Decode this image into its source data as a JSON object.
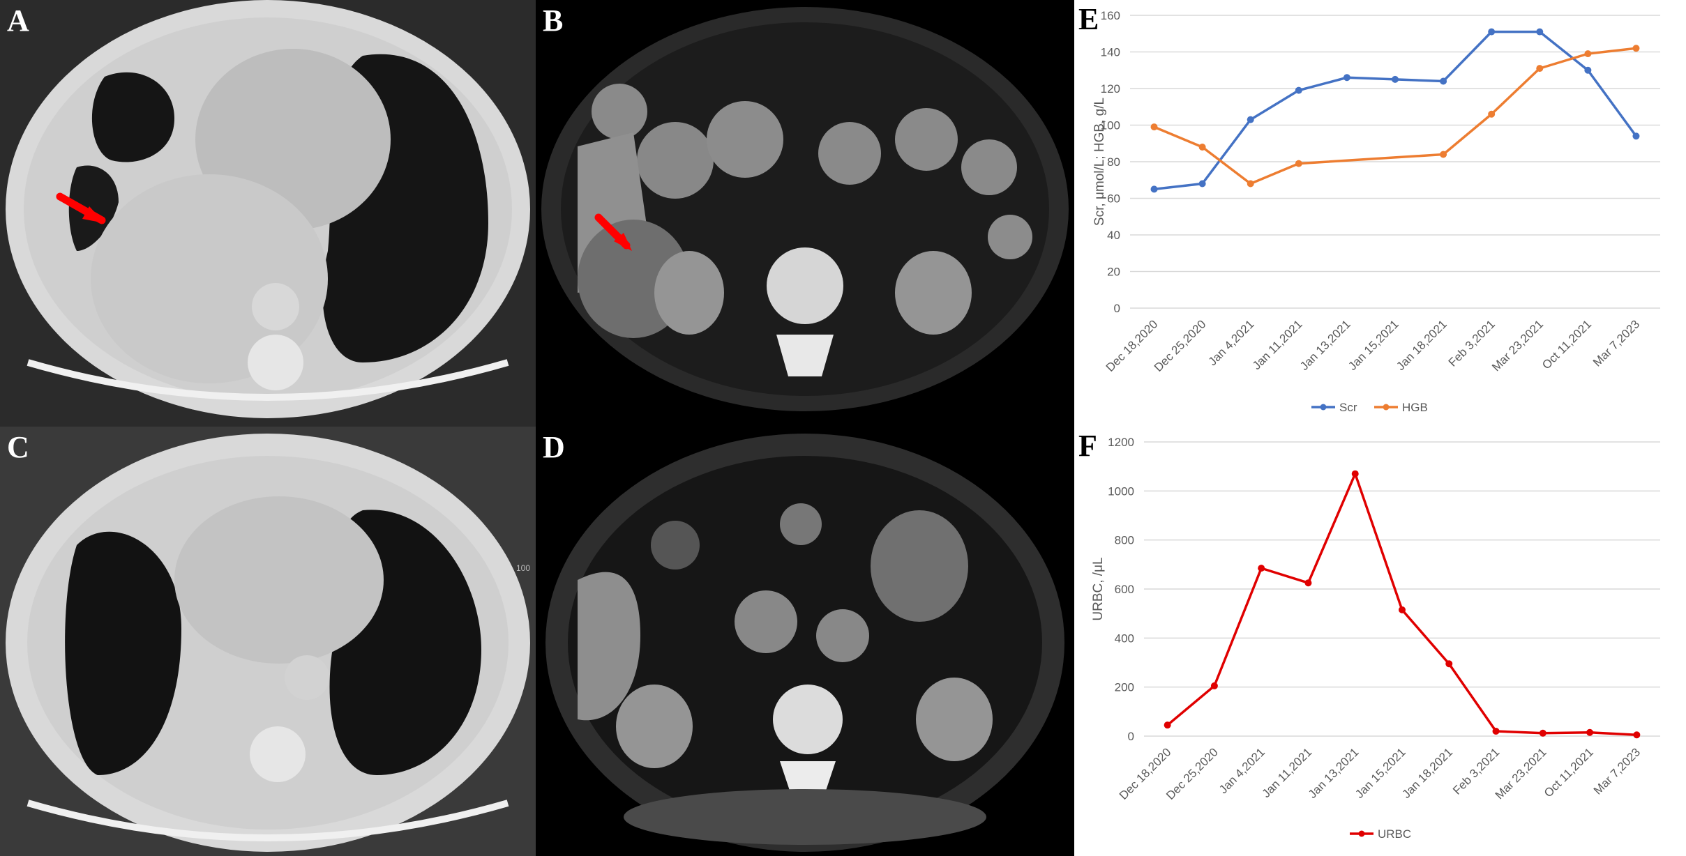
{
  "panels": {
    "A": {
      "letter": "A",
      "description_icon": "ct-chest-lung-window-icon"
    },
    "B": {
      "letter": "B",
      "description_icon": "ct-abdomen-icon"
    },
    "C": {
      "letter": "C",
      "description_icon": "ct-chest-lung-window-icon"
    },
    "D": {
      "letter": "D",
      "description_icon": "ct-abdomen-icon",
      "side_number": ""
    },
    "C_side_number": "100",
    "E": {
      "letter": "E"
    },
    "F": {
      "letter": "F"
    }
  },
  "colors": {
    "scr": "#4472C4",
    "hgb": "#ED7D31",
    "urbc": "#E00000",
    "arrow": "#FF0000",
    "grid": "#D9D9D9"
  },
  "chart_data": [
    {
      "type": "line",
      "panel": "E",
      "categories": [
        "Dec 18,2020",
        "Dec 25,2020",
        "Jan 4,2021",
        "Jan 11,2021",
        "Jan 13,2021",
        "Jan 15,2021",
        "Jan 18,2021",
        "Feb 3,2021",
        "Mar 23,2021",
        "Oct 11,2021",
        "Mar 7,2023"
      ],
      "x_positions": [
        0,
        1,
        2,
        3,
        4,
        5,
        6,
        7,
        8,
        9,
        10
      ],
      "series": [
        {
          "name": "Scr",
          "color": "#4472C4",
          "x": [
            0,
            1,
            2,
            3,
            4,
            5,
            6,
            7,
            8,
            9,
            10
          ],
          "values": [
            65,
            68,
            103,
            119,
            126,
            125,
            124,
            151,
            151,
            130,
            94
          ]
        },
        {
          "name": "HGB",
          "color": "#ED7D31",
          "x": [
            0,
            1,
            2,
            3,
            6,
            7,
            8,
            9,
            10
          ],
          "values": [
            99,
            88,
            68,
            79,
            84,
            106,
            131,
            139,
            142
          ]
        }
      ],
      "ylabel": "Scr, μmol/L; HGB, g/L",
      "ylim": [
        0,
        160
      ],
      "yticks": [
        0,
        20,
        40,
        60,
        80,
        100,
        120,
        140,
        160
      ],
      "grid": true,
      "legend": "bottom"
    },
    {
      "type": "line",
      "panel": "F",
      "categories": [
        "Dec 18,2020",
        "Dec 25,2020",
        "Jan 4,2021",
        "Jan 11,2021",
        "Jan 13,2021",
        "Jan 15,2021",
        "Jan 18,2021",
        "Feb 3,2021",
        "Mar 23,2021",
        "Oct 11,2021",
        "Mar 7,2023"
      ],
      "series": [
        {
          "name": "URBC",
          "color": "#E00000",
          "values": [
            45,
            205,
            685,
            625,
            1070,
            515,
            295,
            20,
            12,
            15,
            5
          ]
        }
      ],
      "ylabel": "URBC, /μL",
      "ylim": [
        0,
        1200
      ],
      "yticks": [
        0,
        200,
        400,
        600,
        800,
        1000,
        1200
      ],
      "grid": true,
      "legend": "bottom"
    }
  ]
}
